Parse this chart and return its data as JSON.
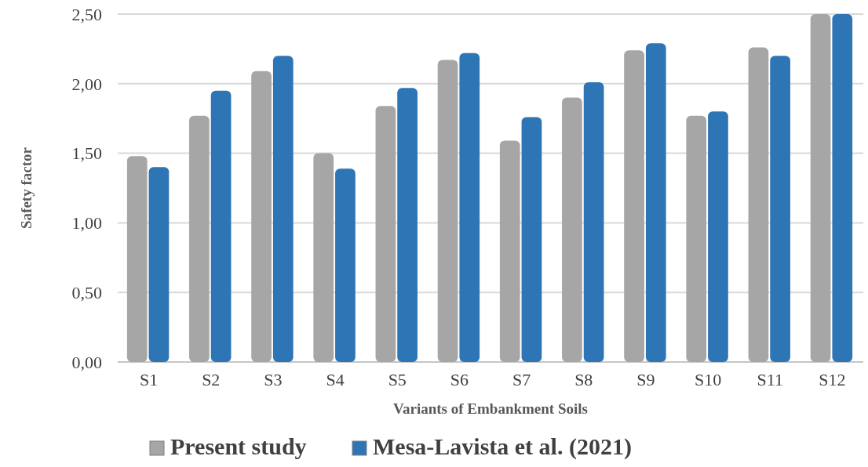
{
  "chart_data": {
    "type": "bar",
    "xlabel": "Variants of Embankment Soils",
    "ylabel": "Safety factor",
    "categories": [
      "S1",
      "S2",
      "S3",
      "S4",
      "S5",
      "S6",
      "S7",
      "S8",
      "S9",
      "S10",
      "S11",
      "S12"
    ],
    "series": [
      {
        "name": "Present study",
        "color": "#a6a6a6",
        "values": [
          1.48,
          1.77,
          2.09,
          1.5,
          1.84,
          2.17,
          1.59,
          1.9,
          2.24,
          1.77,
          2.26,
          2.5
        ]
      },
      {
        "name": "Mesa-Lavista et al. (2021)",
        "color": "#2e75b6",
        "values": [
          1.4,
          1.95,
          2.2,
          1.39,
          1.97,
          2.22,
          1.76,
          2.01,
          2.29,
          1.8,
          2.2,
          2.5
        ]
      }
    ],
    "ylim": [
      0,
      2.5
    ],
    "yticks": [
      {
        "value": 0,
        "label": "0,00"
      },
      {
        "value": 0.5,
        "label": "0,50"
      },
      {
        "value": 1,
        "label": "1,00"
      },
      {
        "value": 1.5,
        "label": "1,50"
      },
      {
        "value": 2,
        "label": "2,00"
      },
      {
        "value": 2.5,
        "label": "2,50"
      }
    ],
    "grid": "y",
    "legend": "bottom"
  }
}
